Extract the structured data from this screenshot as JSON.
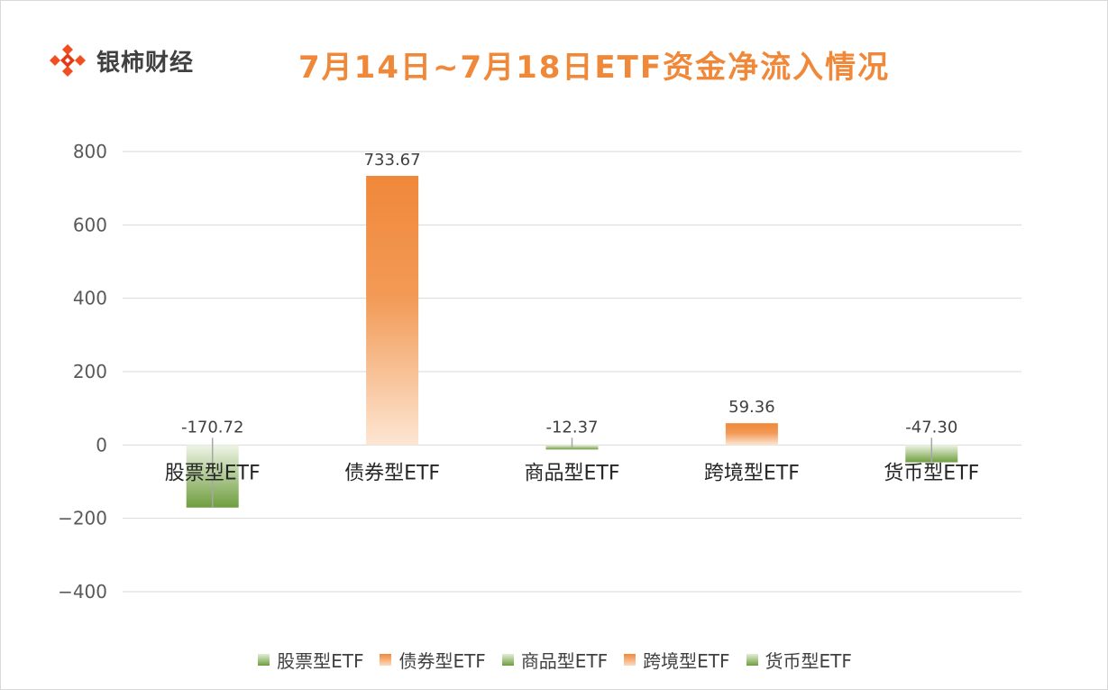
{
  "brand": {
    "name": "银柿财经",
    "icon": "diamond-logo-icon",
    "colors": [
      "#f04e23",
      "#e23a16"
    ]
  },
  "header": {
    "title": "7月14日~7月18日ETF资金净流入情况"
  },
  "colors": {
    "orange": "#f0883a",
    "green": "#7fac4f",
    "grid": "#d9d9d9",
    "text": "#595959"
  },
  "chart_data": {
    "type": "bar",
    "title": "7月14日~7月18日ETF资金净流入情况",
    "categories": [
      "股票型ETF",
      "债券型ETF",
      "商品型ETF",
      "跨境型ETF",
      "货币型ETF"
    ],
    "values": [
      -170.72,
      733.67,
      -12.37,
      59.36,
      -47.3
    ],
    "data_labels": [
      "-170.72",
      "733.67",
      "-12.37",
      "59.36",
      "-47.30"
    ],
    "bar_colors": [
      "green",
      "orange",
      "green",
      "orange",
      "green"
    ],
    "ylim": [
      -400,
      800
    ],
    "yticks": [
      800,
      600,
      400,
      200,
      0,
      -200,
      -400
    ],
    "ytick_labels": [
      "800",
      "600",
      "400",
      "200",
      "0",
      "−200",
      "−400"
    ],
    "grid": true,
    "legend": {
      "placement": "bottom",
      "entries": [
        "股票型ETF",
        "债券型ETF",
        "商品型ETF",
        "跨境型ETF",
        "货币型ETF"
      ]
    }
  }
}
